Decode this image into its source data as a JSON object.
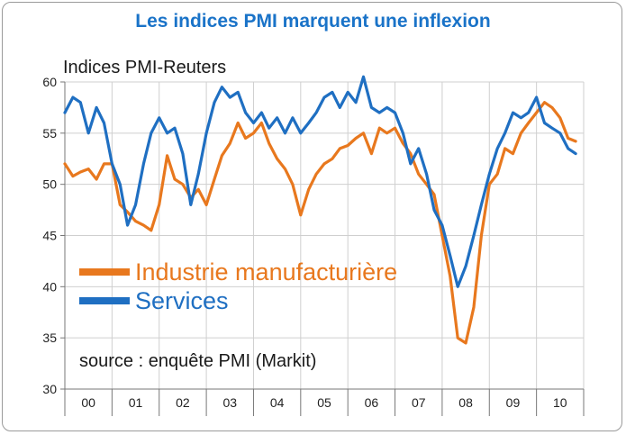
{
  "header": {
    "title": "Les indices PMI marquent une inflexion"
  },
  "chart_data": {
    "type": "line",
    "title": "Les indices PMI marquent une inflexion",
    "subtitle": "Indices PMI-Reuters",
    "note": "source : enquête PMI (Markit)",
    "ylim": [
      30,
      60
    ],
    "yticks": [
      30,
      35,
      40,
      45,
      50,
      55,
      60
    ],
    "x_categories": [
      "00",
      "01",
      "02",
      "03",
      "04",
      "05",
      "06",
      "07",
      "08",
      "09",
      "10"
    ],
    "xlim": [
      2000.0,
      2011.0
    ],
    "grid": true,
    "legend_position": "lower-left",
    "series": [
      {
        "name": "Industrie manufacturière",
        "color": "#e8781e",
        "x": [
          2000.0,
          2000.17,
          2000.33,
          2000.5,
          2000.67,
          2000.83,
          2001.0,
          2001.17,
          2001.33,
          2001.5,
          2001.67,
          2001.83,
          2002.0,
          2002.17,
          2002.33,
          2002.5,
          2002.67,
          2002.83,
          2003.0,
          2003.17,
          2003.33,
          2003.5,
          2003.67,
          2003.83,
          2004.0,
          2004.17,
          2004.33,
          2004.5,
          2004.67,
          2004.83,
          2005.0,
          2005.17,
          2005.33,
          2005.5,
          2005.67,
          2005.83,
          2006.0,
          2006.17,
          2006.33,
          2006.5,
          2006.67,
          2006.83,
          2007.0,
          2007.17,
          2007.33,
          2007.5,
          2007.67,
          2007.83,
          2008.0,
          2008.17,
          2008.33,
          2008.5,
          2008.67,
          2008.83,
          2009.0,
          2009.17,
          2009.33,
          2009.5,
          2009.67,
          2009.83,
          2010.0,
          2010.17,
          2010.33,
          2010.5,
          2010.67,
          2010.83
        ],
        "values": [
          52.0,
          50.8,
          51.2,
          51.5,
          50.5,
          52.0,
          52.0,
          48.0,
          47.3,
          46.4,
          46.0,
          45.5,
          48.0,
          52.8,
          50.5,
          50.0,
          48.7,
          49.5,
          48.0,
          50.5,
          52.8,
          54.0,
          56.0,
          54.5,
          55.0,
          56.0,
          54.0,
          52.5,
          51.5,
          50.0,
          47.0,
          49.5,
          51.0,
          52.0,
          52.5,
          53.5,
          53.8,
          54.5,
          55.0,
          53.0,
          55.5,
          55.0,
          55.5,
          54.0,
          53.0,
          51.0,
          50.0,
          49.0,
          45.0,
          41.0,
          35.0,
          34.5,
          38.0,
          45.0,
          50.0,
          51.0,
          53.5,
          53.0,
          55.0,
          56.0,
          57.0,
          58.0,
          57.5,
          56.5,
          54.5,
          54.2
        ]
      },
      {
        "name": "Services",
        "color": "#1f6fc2",
        "x": [
          2000.0,
          2000.17,
          2000.33,
          2000.5,
          2000.67,
          2000.83,
          2001.0,
          2001.17,
          2001.33,
          2001.5,
          2001.67,
          2001.83,
          2002.0,
          2002.17,
          2002.33,
          2002.5,
          2002.67,
          2002.83,
          2003.0,
          2003.17,
          2003.33,
          2003.5,
          2003.67,
          2003.83,
          2004.0,
          2004.17,
          2004.33,
          2004.5,
          2004.67,
          2004.83,
          2005.0,
          2005.17,
          2005.33,
          2005.5,
          2005.67,
          2005.83,
          2006.0,
          2006.17,
          2006.33,
          2006.5,
          2006.67,
          2006.83,
          2007.0,
          2007.17,
          2007.33,
          2007.5,
          2007.67,
          2007.83,
          2008.0,
          2008.17,
          2008.33,
          2008.5,
          2008.67,
          2008.83,
          2009.0,
          2009.17,
          2009.33,
          2009.5,
          2009.67,
          2009.83,
          2010.0,
          2010.17,
          2010.33,
          2010.5,
          2010.67,
          2010.83
        ],
        "values": [
          57.0,
          58.5,
          58.0,
          55.0,
          57.5,
          56.0,
          52.0,
          50.0,
          46.0,
          48.0,
          52.0,
          55.0,
          56.5,
          55.0,
          55.5,
          53.0,
          48.0,
          51.0,
          55.0,
          58.0,
          59.5,
          58.5,
          59.0,
          57.0,
          56.0,
          57.0,
          55.5,
          56.5,
          55.0,
          56.5,
          55.0,
          56.0,
          57.0,
          58.5,
          59.0,
          57.5,
          59.0,
          58.0,
          60.5,
          57.5,
          57.0,
          57.5,
          57.0,
          55.0,
          52.0,
          53.5,
          51.0,
          47.5,
          46.0,
          43.0,
          40.0,
          42.0,
          45.0,
          48.0,
          51.0,
          53.5,
          55.0,
          57.0,
          56.5,
          57.0,
          58.5,
          56.0,
          55.5,
          55.0,
          53.5,
          53.0
        ]
      }
    ]
  }
}
